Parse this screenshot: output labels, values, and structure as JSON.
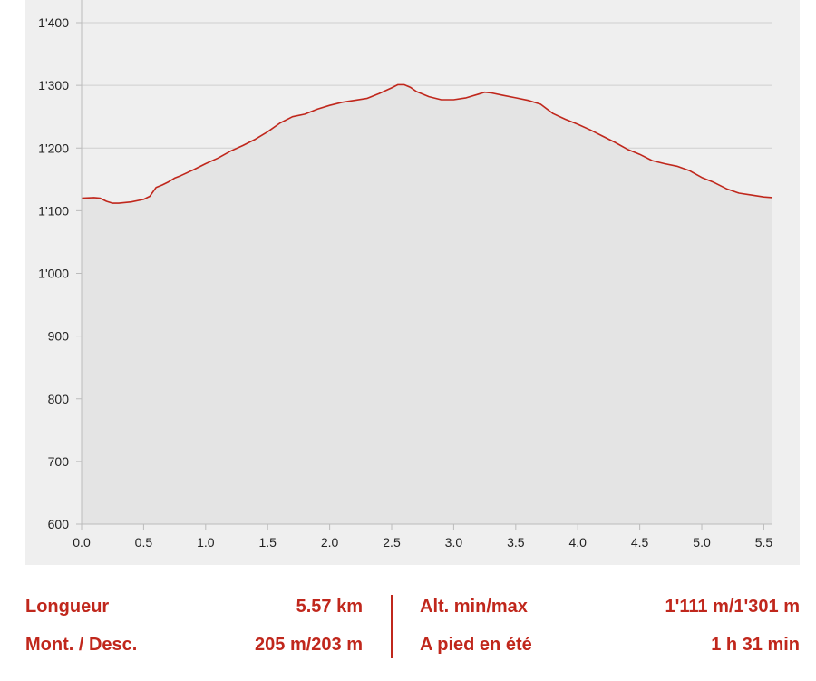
{
  "chart_data": {
    "type": "area",
    "ylim": [
      600,
      1400
    ],
    "xlim": [
      0,
      5.57
    ],
    "y_ticks": [
      "600",
      "700",
      "800",
      "900",
      "1'000",
      "1'100",
      "1'200",
      "1'300",
      "1'400"
    ],
    "x_ticks": [
      "0.0",
      "0.5",
      "1.0",
      "1.5",
      "2.0",
      "2.5",
      "3.0",
      "3.5",
      "4.0",
      "4.5",
      "5.0",
      "5.5"
    ],
    "grid": true,
    "colors": {
      "line": "#c0271c",
      "fill": "#e4e4e4",
      "background": "#efefef",
      "grid": "#cfcfcf"
    },
    "series": [
      {
        "x": [
          0,
          0.1,
          0.15,
          0.2,
          0.25,
          0.3,
          0.4,
          0.5,
          0.55,
          0.6,
          0.65,
          0.7,
          0.75,
          0.8,
          0.9,
          1.0,
          1.1,
          1.2,
          1.3,
          1.4,
          1.5,
          1.6,
          1.7,
          1.8,
          1.9,
          2.0,
          2.1,
          2.2,
          2.3,
          2.4,
          2.5,
          2.55,
          2.6,
          2.65,
          2.7,
          2.8,
          2.9,
          3.0,
          3.1,
          3.2,
          3.25,
          3.3,
          3.4,
          3.5,
          3.6,
          3.7,
          3.8,
          3.9,
          4.0,
          4.1,
          4.2,
          4.3,
          4.4,
          4.5,
          4.6,
          4.7,
          4.8,
          4.9,
          5.0,
          5.1,
          5.2,
          5.3,
          5.4,
          5.5,
          5.57
        ],
        "y": [
          1120,
          1121,
          1120,
          1115,
          1112,
          1112,
          1114,
          1118,
          1123,
          1137,
          1141,
          1146,
          1152,
          1156,
          1165,
          1175,
          1184,
          1195,
          1204,
          1214,
          1226,
          1240,
          1250,
          1254,
          1262,
          1268,
          1273,
          1276,
          1279,
          1287,
          1296,
          1301,
          1301,
          1297,
          1290,
          1282,
          1277,
          1277,
          1280,
          1286,
          1289,
          1288,
          1284,
          1280,
          1276,
          1270,
          1255,
          1246,
          1238,
          1229,
          1219,
          1209,
          1198,
          1190,
          1180,
          1175,
          1171,
          1164,
          1153,
          1145,
          1135,
          1128,
          1125,
          1122,
          1121
        ]
      }
    ]
  },
  "stats": {
    "length_label": "Longueur",
    "length_value": "5.57 km",
    "updown_label": "Mont. / Desc.",
    "updown_value": "205 m/203 m",
    "altminmax_label": "Alt. min/max",
    "altminmax_value": "1'111 m/1'301 m",
    "walk_label": "A pied en été",
    "walk_value": "1 h 31 min"
  }
}
